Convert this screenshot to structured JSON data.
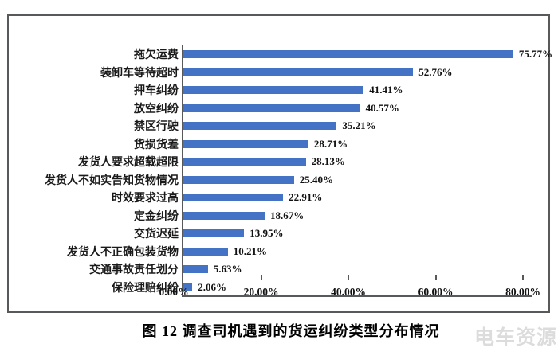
{
  "chart_data": {
    "type": "bar",
    "orientation": "horizontal",
    "title": "图 12 调查司机遇到的货运纠纷类型分布情况",
    "categories": [
      "拖欠运费",
      "装卸车等待超时",
      "押车纠纷",
      "放空纠纷",
      "禁区行驶",
      "货损货差",
      "发货人要求超载超限",
      "发货人不如实告知货物情况",
      "时效要求过高",
      "定金纠纷",
      "交货迟延",
      "发货人不正确包装货物",
      "交通事故责任划分",
      "保险理赔纠纷"
    ],
    "values": [
      75.77,
      52.76,
      41.41,
      40.57,
      35.21,
      28.71,
      28.13,
      25.4,
      22.91,
      18.67,
      13.95,
      10.21,
      5.63,
      2.06
    ],
    "xlabel": "",
    "ylabel": "",
    "xlim": [
      0,
      80
    ],
    "x_tick_values": [
      0,
      20,
      40,
      60,
      80
    ],
    "x_tick_labels": [
      "0.00%",
      "20.00%",
      "40.00%",
      "60.00%",
      "80.00%"
    ],
    "grid": false,
    "legend_position": "none",
    "bar_color": "#4472C4",
    "axis_color": "#58595b",
    "data_label_suffix": "%"
  },
  "watermark": {
    "text": "电车资源",
    "color": "#dcdcdc"
  }
}
